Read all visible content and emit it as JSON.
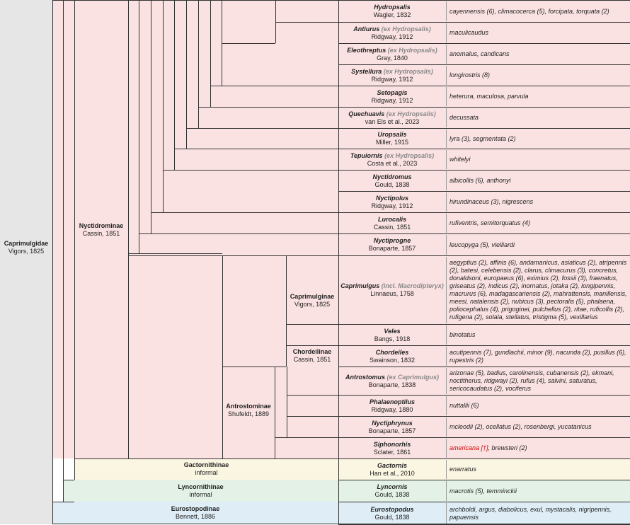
{
  "colors": {
    "family_bg": "#e6e6e6",
    "pink": "#fbe2e2",
    "yellow": "#fbf6e2",
    "green": "#e3f1e6",
    "blue": "#deedf6",
    "line": "#333333",
    "gray_text": "#888888",
    "red_text": "#cc0000"
  },
  "family": {
    "name": "Caprimulgidae",
    "author": "Vigors, 1825"
  },
  "subfamilies": {
    "nyctidrominae": {
      "name": "Nyctidrominae",
      "author": "Cassin, 1851"
    },
    "caprimulginae": {
      "name": "Caprimulginae",
      "author": "Vigors, 1825"
    },
    "chordeilinae": {
      "name": "Chordeilinae",
      "author": "Cassin, 1851"
    },
    "antrostominae": {
      "name": "Antrostominae",
      "author": "Shufeldt, 1889"
    },
    "gactornithinae": {
      "name": "Gactornithinae",
      "author": "informal"
    },
    "lyncornithinae": {
      "name": "Lyncornithinae",
      "author": "informal"
    },
    "eurostopodinae": {
      "name": "Eurostopodinae",
      "author": "Bennett, 1886"
    }
  },
  "genera": [
    {
      "name": "Hydropsalis",
      "note": "",
      "author": "Wagler, 1832",
      "species": "cayennensis (6), climacocerca (5), forcipata, torquata (2)",
      "species_red": ""
    },
    {
      "name": "Antiurus",
      "note": "(ex Hydropsalis)",
      "author": "Ridgway, 1912",
      "species": "maculicaudus",
      "species_red": ""
    },
    {
      "name": "Eleothreptus",
      "note": "(ex Hydropsalis)",
      "author": "Gray, 1840",
      "species": "anomalus, candicans",
      "species_red": ""
    },
    {
      "name": "Systellura",
      "note": "(ex Hydropsalis)",
      "author": "Ridgway, 1912",
      "species": "longirostris (8)",
      "species_red": ""
    },
    {
      "name": "Setopagis",
      "note": "",
      "author": "Ridgway, 1912",
      "species": "heterura, maculosa, parvula",
      "species_red": ""
    },
    {
      "name": "Quechuavis",
      "note": "(ex Hydropsalis)",
      "author": "van Els et al., 2023",
      "species": "decussata",
      "species_red": ""
    },
    {
      "name": "Uropsalis",
      "note": "",
      "author": "Miller, 1915",
      "species": "lyra (3), segmentata (2)",
      "species_red": ""
    },
    {
      "name": "Tepuiornis",
      "note": "(ex Hydropsalis)",
      "author": "Costa et al., 2023",
      "species": "whitelyi",
      "species_red": ""
    },
    {
      "name": "Nyctidromus",
      "note": "",
      "author": "Gould, 1838",
      "species": "albicollis (6), anthonyi",
      "species_red": ""
    },
    {
      "name": "Nyctipolus",
      "note": "",
      "author": "Ridgway, 1912",
      "species": "hirundinaceus (3), nigrescens",
      "species_red": ""
    },
    {
      "name": "Lurocalis",
      "note": "",
      "author": "Cassin, 1851",
      "species": "rufiventris, semitorquatus (4)",
      "species_red": ""
    },
    {
      "name": "Nyctiprogne",
      "note": "",
      "author": "Bonaparte, 1857",
      "species": "leucopyga (5), vielliardi",
      "species_red": ""
    },
    {
      "name": "Caprimulgus",
      "note": "(incl. Macrodipteryx)",
      "author": "Linnaeus, 1758",
      "species": "aegyptius (2), affinis (6), andamanicus, asiaticus (2), atripennis (2), batesi, celebensis (2), clarus, climacurus (3), concretus, donaldsoni, europaeus (6), eximius (2), fossii (3), fraenatus, griseatus (2), indicus (2), inornatus, jotaka (2), longipennis, macrurus (6), madagascariensis (2), mahrattensis, manillensis, meesi, natalensis (2), nubicus (3), pectoralis (5), phalaena, poliocephalus (4), prigoginei, pulchellus (2), ritae, ruficollis (2), rufigena (2), solala, stellatus, tristigma (5), vexillarius",
      "species_red": ""
    },
    {
      "name": "Veles",
      "note": "",
      "author": "Bangs, 1918",
      "species": "binotatus",
      "species_red": ""
    },
    {
      "name": "Chordeiles",
      "note": "",
      "author": "Swainson, 1832",
      "species": "acutipennis (7), gundlachii, minor (9), nacunda (2), pusillus (6), rupestris (2)",
      "species_red": ""
    },
    {
      "name": "Antrostomus",
      "note": "(ex Caprimulgus)",
      "author": "Bonaparte, 1838",
      "species": "arizonae (5), badius, carolinensis, cubanensis (2), ekmani, noctitherus, ridgwayi (2), rufus (4), salvini, saturatus, sericocaudatus (2), vociferus",
      "species_red": ""
    },
    {
      "name": "Phalaenoptilus",
      "note": "",
      "author": "Ridgway, 1880",
      "species": "nuttallii (6)",
      "species_red": ""
    },
    {
      "name": "Nyctiphrynus",
      "note": "",
      "author": "Bonaparte, 1857",
      "species": "mcleodii (2), ocellatus (2), rosenbergi, yucatanicus",
      "species_red": ""
    },
    {
      "name": "Siphonorhis",
      "note": "",
      "author": "Sclater, 1861",
      "species": ", brewsteri (2)",
      "species_red": "americana [†]"
    },
    {
      "name": "Gactornis",
      "note": "",
      "author": "Han et al., 2010",
      "species": "enarratus",
      "species_red": ""
    },
    {
      "name": "Lyncornis",
      "note": "",
      "author": "Gould, 1838",
      "species": "macrotis (5), temminckii",
      "species_red": ""
    },
    {
      "name": "Eurostopodus",
      "note": "",
      "author": "Gould, 1838",
      "species": "archboldi, argus, diabolicus, exul, mystacalis, nigripennis, papuensis",
      "species_red": ""
    }
  ]
}
